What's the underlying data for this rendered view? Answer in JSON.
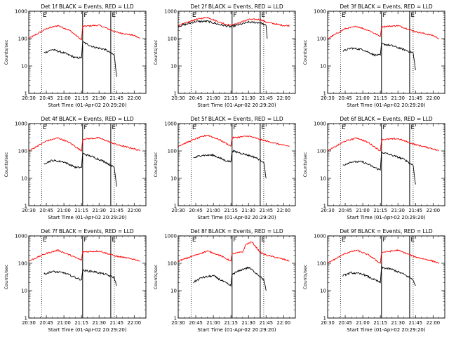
{
  "chart_data": {
    "type": "line",
    "ylim": [
      1,
      1000
    ],
    "y_scale": "log",
    "y_ticks": [
      1,
      10,
      100,
      1000
    ],
    "x_tick_labels": [
      "20:30",
      "20:45",
      "21:00",
      "21:15",
      "21:30",
      "21:45",
      "22:00"
    ],
    "ylabel": "Counts/sec",
    "xlabel": "Start Time (01-Apr-02 20:29:20)",
    "legend": "BLACK = Events, RED = LLD",
    "colors": {
      "events": "#000000",
      "lld": "#ff0000"
    },
    "markers": [
      {
        "label": "E",
        "style": "dotted",
        "time": "20:41"
      },
      {
        "label": "F",
        "style": "solid",
        "time": "21:16"
      },
      {
        "label": "E",
        "style": "solid",
        "time": "21:40"
      },
      {
        "label": "",
        "style": "dotted",
        "time": "21:43"
      }
    ],
    "panels": [
      {
        "title": "Det 1f BLACK = Events, RED = LLD",
        "lld": {
          "x": [
            "20:30",
            "20:45",
            "20:55",
            "21:05",
            "21:15",
            "21:16",
            "21:30",
            "21:45",
            "22:00",
            "22:05"
          ],
          "y": [
            100,
            230,
            300,
            200,
            90,
            280,
            310,
            170,
            130,
            100
          ]
        },
        "events": {
          "x": [
            "20:43",
            "20:50",
            "21:00",
            "21:10",
            "21:15",
            "21:16",
            "21:25",
            "21:35",
            "21:43",
            "21:45"
          ],
          "y": [
            30,
            40,
            30,
            20,
            20,
            75,
            50,
            40,
            25,
            4
          ]
        }
      },
      {
        "title": "Det 2f BLACK = Events, RED = LLD",
        "lld": {
          "x": [
            "20:30",
            "20:45",
            "20:55",
            "21:05",
            "21:15",
            "21:30",
            "21:40",
            "21:45",
            "22:00",
            "22:05"
          ],
          "y": [
            300,
            500,
            600,
            400,
            300,
            500,
            500,
            400,
            300,
            300
          ]
        },
        "events": {
          "x": [
            "20:30",
            "20:45",
            "20:55",
            "21:05",
            "21:15",
            "21:30",
            "21:40",
            "21:45",
            "21:46"
          ],
          "y": [
            280,
            420,
            430,
            330,
            270,
            400,
            380,
            300,
            100
          ]
        }
      },
      {
        "title": "Det 3f BLACK = Events, RED = LLD",
        "lld": {
          "x": [
            "20:30",
            "20:45",
            "20:55",
            "21:05",
            "21:15",
            "21:16",
            "21:30",
            "21:45",
            "22:00",
            "22:05"
          ],
          "y": [
            100,
            230,
            280,
            200,
            120,
            270,
            300,
            180,
            130,
            100
          ]
        },
        "events": {
          "x": [
            "20:43",
            "20:50",
            "21:00",
            "21:10",
            "21:15",
            "21:16",
            "21:25",
            "21:35",
            "21:43",
            "21:45"
          ],
          "y": [
            35,
            45,
            40,
            25,
            25,
            65,
            55,
            40,
            30,
            7
          ]
        }
      },
      {
        "title": "Det 4f BLACK = Events, RED = LLD",
        "lld": {
          "x": [
            "20:30",
            "20:45",
            "20:55",
            "21:05",
            "21:15",
            "21:16",
            "21:30",
            "21:45",
            "22:00",
            "22:05"
          ],
          "y": [
            100,
            230,
            300,
            200,
            100,
            270,
            300,
            170,
            120,
            100
          ]
        },
        "events": {
          "x": [
            "20:43",
            "20:50",
            "21:00",
            "21:10",
            "21:15",
            "21:16",
            "21:25",
            "21:35",
            "21:43",
            "21:45"
          ],
          "y": [
            35,
            45,
            40,
            25,
            25,
            80,
            60,
            40,
            25,
            5
          ]
        }
      },
      {
        "title": "Det 5f BLACK = Events, RED = LLD",
        "lld": {
          "x": [
            "20:30",
            "20:45",
            "20:55",
            "21:05",
            "21:15",
            "21:16",
            "21:30",
            "21:45",
            "22:00",
            "22:05"
          ],
          "y": [
            150,
            280,
            380,
            260,
            150,
            300,
            350,
            230,
            160,
            150
          ]
        },
        "events": {
          "x": [
            "20:43",
            "20:50",
            "21:00",
            "21:10",
            "21:15",
            "21:16",
            "21:25",
            "21:35",
            "21:43",
            "21:45"
          ],
          "y": [
            55,
            70,
            70,
            45,
            40,
            100,
            80,
            60,
            40,
            10
          ]
        }
      },
      {
        "title": "Det 6f BLACK = Events, RED = LLD",
        "lld": {
          "x": [
            "20:30",
            "20:45",
            "20:55",
            "21:05",
            "21:15",
            "21:16",
            "21:30",
            "21:45",
            "22:00",
            "22:05"
          ],
          "y": [
            100,
            230,
            300,
            200,
            100,
            260,
            280,
            170,
            120,
            100
          ]
        },
        "events": {
          "x": [
            "20:43",
            "20:50",
            "21:00",
            "21:10",
            "21:15",
            "21:16",
            "21:25",
            "21:35",
            "21:43",
            "21:45"
          ],
          "y": [
            30,
            40,
            40,
            25,
            20,
            90,
            70,
            50,
            30,
            6
          ]
        }
      },
      {
        "title": "Det 7f BLACK = Events, RED = LLD",
        "lld": {
          "x": [
            "20:30",
            "20:45",
            "20:55",
            "21:05",
            "21:15",
            "21:16",
            "21:30",
            "21:45",
            "22:00",
            "22:05"
          ],
          "y": [
            120,
            230,
            300,
            200,
            130,
            260,
            280,
            180,
            140,
            120
          ]
        },
        "events": {
          "x": [
            "20:43",
            "20:50",
            "21:00",
            "21:10",
            "21:15",
            "21:16",
            "21:25",
            "21:35",
            "21:43",
            "21:45"
          ],
          "y": [
            40,
            50,
            45,
            30,
            25,
            55,
            50,
            40,
            30,
            15
          ]
        }
      },
      {
        "title": "Det 8f BLACK = Events, RED = LLD",
        "lld": {
          "x": [
            "20:30",
            "20:45",
            "20:55",
            "21:05",
            "21:15",
            "21:16",
            "21:25",
            "21:28",
            "21:33",
            "21:40",
            "21:45",
            "22:00",
            "22:05"
          ],
          "y": [
            120,
            200,
            280,
            200,
            120,
            220,
            260,
            500,
            600,
            250,
            200,
            140,
            120
          ]
        },
        "events": {
          "x": [
            "20:43",
            "20:50",
            "21:00",
            "21:10",
            "21:15",
            "21:16",
            "21:25",
            "21:30",
            "21:35",
            "21:43",
            "21:45"
          ],
          "y": [
            20,
            30,
            35,
            20,
            15,
            40,
            60,
            70,
            50,
            25,
            10
          ]
        }
      },
      {
        "title": "Det 9f BLACK = Events, RED = LLD",
        "lld": {
          "x": [
            "20:30",
            "20:45",
            "20:55",
            "21:05",
            "21:15",
            "21:16",
            "21:30",
            "21:45",
            "22:00",
            "22:05"
          ],
          "y": [
            100,
            230,
            300,
            200,
            100,
            250,
            300,
            170,
            120,
            100
          ]
        },
        "events": {
          "x": [
            "20:43",
            "20:50",
            "21:00",
            "21:10",
            "21:15",
            "21:16",
            "21:25",
            "21:35",
            "21:43",
            "21:45"
          ],
          "y": [
            35,
            45,
            40,
            25,
            20,
            70,
            60,
            40,
            25,
            15
          ]
        }
      }
    ]
  }
}
